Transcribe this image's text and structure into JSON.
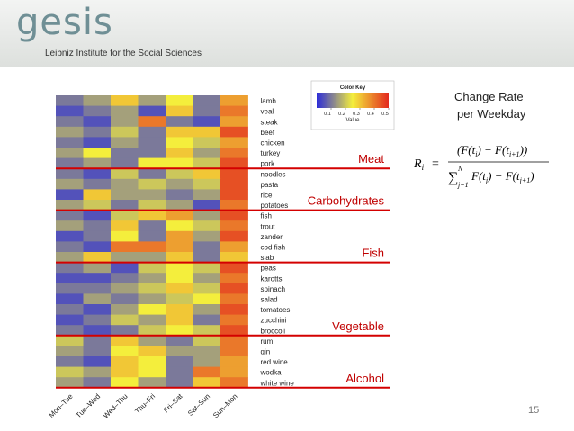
{
  "header": {
    "logo_main": "gesis",
    "tagline": "Leibniz Institute for the Social Sciences"
  },
  "chart_data": {
    "type": "heatmap",
    "title": "",
    "categories_x": [
      "Mon–Tue",
      "Tue–Wed",
      "Wed–Thu",
      "Thu–Fri",
      "Fri–Sat",
      "Sat–Sun",
      "Sun–Mon"
    ],
    "rows": [
      "lamb",
      "veal",
      "steak",
      "beef",
      "chicken",
      "turkey",
      "pork",
      "noodles",
      "pasta",
      "rice",
      "potatoes",
      "fish",
      "trout",
      "zander",
      "cod fish",
      "slab",
      "peas",
      "karotts",
      "spinach",
      "salad",
      "tomatoes",
      "zucchini",
      "broccoli",
      "rum",
      "gin",
      "red wine",
      "wodka",
      "white wine"
    ],
    "values": [
      [
        0.1,
        0.15,
        0.3,
        0.15,
        0.25,
        0.1,
        0.35
      ],
      [
        0.05,
        0.1,
        0.15,
        0.05,
        0.3,
        0.1,
        0.4
      ],
      [
        0.1,
        0.05,
        0.15,
        0.4,
        0.1,
        0.05,
        0.35
      ],
      [
        0.15,
        0.1,
        0.2,
        0.1,
        0.3,
        0.3,
        0.45
      ],
      [
        0.1,
        0.05,
        0.15,
        0.1,
        0.25,
        0.2,
        0.35
      ],
      [
        0.15,
        0.25,
        0.1,
        0.1,
        0.3,
        0.15,
        0.4
      ],
      [
        0.1,
        0.15,
        0.1,
        0.25,
        0.25,
        0.2,
        0.45
      ],
      [
        0.1,
        0.05,
        0.2,
        0.1,
        0.2,
        0.3,
        0.45
      ],
      [
        0.15,
        0.1,
        0.15,
        0.2,
        0.15,
        0.2,
        0.45
      ],
      [
        0.05,
        0.3,
        0.15,
        0.15,
        0.1,
        0.15,
        0.45
      ],
      [
        0.15,
        0.2,
        0.1,
        0.2,
        0.15,
        0.05,
        0.4
      ],
      [
        0.1,
        0.05,
        0.2,
        0.3,
        0.35,
        0.15,
        0.45
      ],
      [
        0.15,
        0.1,
        0.3,
        0.1,
        0.25,
        0.2,
        0.4
      ],
      [
        0.05,
        0.1,
        0.25,
        0.1,
        0.35,
        0.15,
        0.45
      ],
      [
        0.1,
        0.05,
        0.4,
        0.4,
        0.35,
        0.1,
        0.35
      ],
      [
        0.15,
        0.3,
        0.15,
        0.15,
        0.3,
        0.1,
        0.3
      ],
      [
        0.1,
        0.15,
        0.05,
        0.2,
        0.25,
        0.2,
        0.45
      ],
      [
        0.05,
        0.05,
        0.1,
        0.15,
        0.25,
        0.15,
        0.4
      ],
      [
        0.1,
        0.1,
        0.15,
        0.2,
        0.3,
        0.2,
        0.45
      ],
      [
        0.05,
        0.15,
        0.1,
        0.15,
        0.2,
        0.25,
        0.4
      ],
      [
        0.1,
        0.05,
        0.15,
        0.25,
        0.3,
        0.15,
        0.45
      ],
      [
        0.05,
        0.1,
        0.2,
        0.15,
        0.3,
        0.1,
        0.4
      ],
      [
        0.1,
        0.05,
        0.1,
        0.2,
        0.25,
        0.2,
        0.45
      ],
      [
        0.2,
        0.1,
        0.3,
        0.15,
        0.1,
        0.2,
        0.4
      ],
      [
        0.15,
        0.1,
        0.25,
        0.3,
        0.15,
        0.15,
        0.4
      ],
      [
        0.1,
        0.05,
        0.3,
        0.25,
        0.1,
        0.15,
        0.35
      ],
      [
        0.2,
        0.15,
        0.3,
        0.25,
        0.1,
        0.4,
        0.35
      ],
      [
        0.15,
        0.1,
        0.25,
        0.15,
        0.1,
        0.3,
        0.4
      ]
    ],
    "color_key": {
      "title": "Color Key",
      "xlabel": "Value",
      "range": [
        0.0,
        0.5
      ],
      "ticks": [
        "0.1",
        "0.2",
        "0.3",
        "0.4",
        "0.5"
      ],
      "colors": [
        "#2b2bd9",
        "#f4ee3c",
        "#e3291e"
      ]
    },
    "groups": [
      {
        "label": "Meat",
        "last_row": 6
      },
      {
        "label": "Carbohydrates",
        "last_row": 10
      },
      {
        "label": "Fish",
        "last_row": 15
      },
      {
        "label": "Vegetable",
        "last_row": 22
      },
      {
        "label": "Alcohol",
        "last_row": 27
      }
    ]
  },
  "right_panel": {
    "title_line1": "Change Rate",
    "title_line2": "per Weekday",
    "formula_lhs": "R",
    "formula_lhs_sub": "i",
    "formula_numerator": "(F(t",
    "formula_numerator_sub": "i",
    "formula_numerator_mid": ") − F(t",
    "formula_numerator_sub2": "i+1",
    "formula_numerator_end": "))",
    "formula_sum_upper": "N",
    "formula_sum_lower": "j=1",
    "formula_denominator": "F(t",
    "formula_denominator_sub": "j",
    "formula_denominator_mid": ") − F(t",
    "formula_denominator_sub2": "j+1",
    "formula_denominator_end": ")"
  },
  "page_number": "15"
}
